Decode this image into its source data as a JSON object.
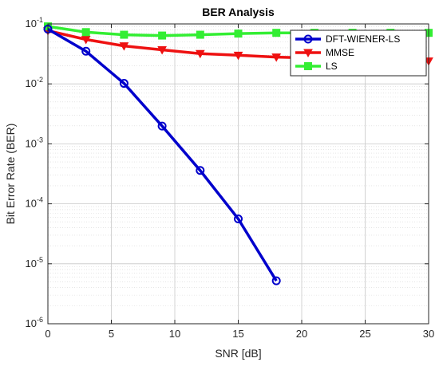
{
  "chart_data": {
    "type": "line",
    "title": "BER Analysis",
    "xlabel": "SNR [dB]",
    "ylabel": "Bit Error Rate (BER)",
    "xlim": [
      0,
      30
    ],
    "ylim": [
      1e-06,
      0.1
    ],
    "yscale": "log",
    "grid": true,
    "minor_grid": true,
    "legend_position": "top-right",
    "x_ticks": [
      "0",
      "5",
      "10",
      "15",
      "20",
      "25",
      "30"
    ],
    "y_ticks": [
      {
        "base": "10",
        "exp": "-6"
      },
      {
        "base": "10",
        "exp": "-5"
      },
      {
        "base": "10",
        "exp": "-4"
      },
      {
        "base": "10",
        "exp": "-3"
      },
      {
        "base": "10",
        "exp": "-2"
      },
      {
        "base": "10",
        "exp": "-1"
      }
    ],
    "series": [
      {
        "name": "DFT-WIENER-LS",
        "color": "#0000cc",
        "marker": "circle",
        "x": [
          0,
          3,
          6,
          9,
          12,
          15,
          18
        ],
        "values": [
          0.082,
          0.035,
          0.0102,
          0.00198,
          0.00036,
          5.6e-05,
          5.2e-06
        ]
      },
      {
        "name": "MMSE",
        "color": "#ee1111",
        "marker": "triangle-down",
        "x": [
          0,
          3,
          6,
          9,
          12,
          15,
          18,
          21,
          24,
          27,
          30
        ],
        "values": [
          0.077,
          0.055,
          0.043,
          0.037,
          0.032,
          0.03,
          0.028,
          0.027,
          0.026,
          0.025,
          0.024
        ]
      },
      {
        "name": "LS",
        "color": "#33ee33",
        "marker": "square",
        "x": [
          0,
          3,
          6,
          9,
          12,
          15,
          18,
          21,
          24,
          27,
          30
        ],
        "values": [
          0.091,
          0.073,
          0.066,
          0.064,
          0.066,
          0.069,
          0.071,
          0.071,
          0.071,
          0.071,
          0.071
        ]
      }
    ]
  }
}
